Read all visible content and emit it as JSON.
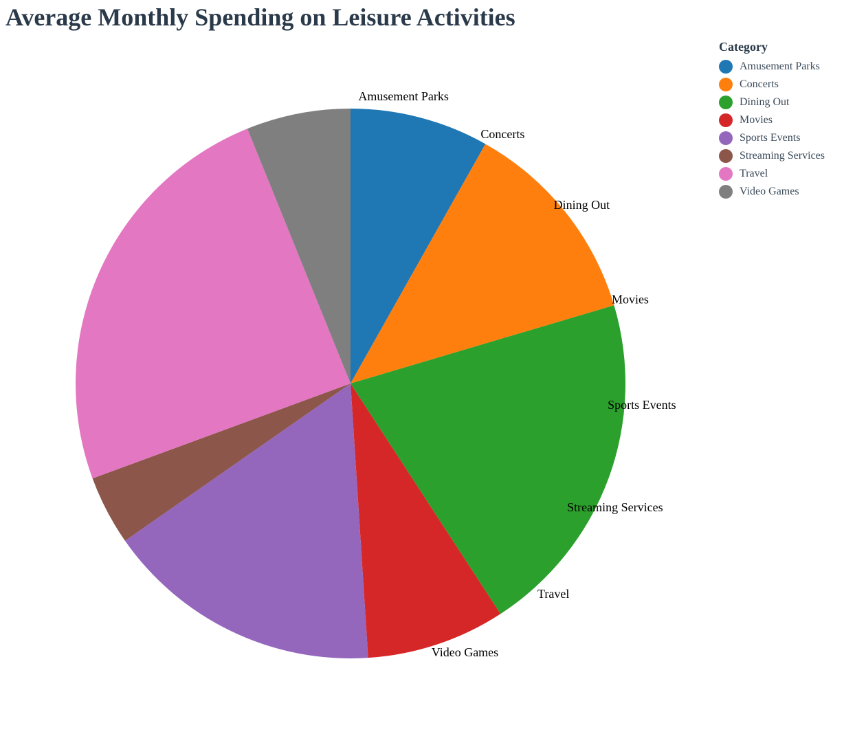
{
  "chart_data": {
    "type": "pie",
    "title": "Average Monthly Spending on Leisure Activities",
    "legend": {
      "title": "Category",
      "position": "top-right"
    },
    "categories": [
      "Amusement Parks",
      "Concerts",
      "Dining Out",
      "Movies",
      "Sports Events",
      "Streaming Services",
      "Travel",
      "Video Games"
    ],
    "values": [
      40,
      60,
      100,
      40,
      80,
      20,
      120,
      30
    ],
    "colors": [
      "#1f77b4",
      "#ff7f0e",
      "#2ca02c",
      "#d62728",
      "#9467bd",
      "#8c564b",
      "#e377c2",
      "#7f7f7f"
    ]
  }
}
